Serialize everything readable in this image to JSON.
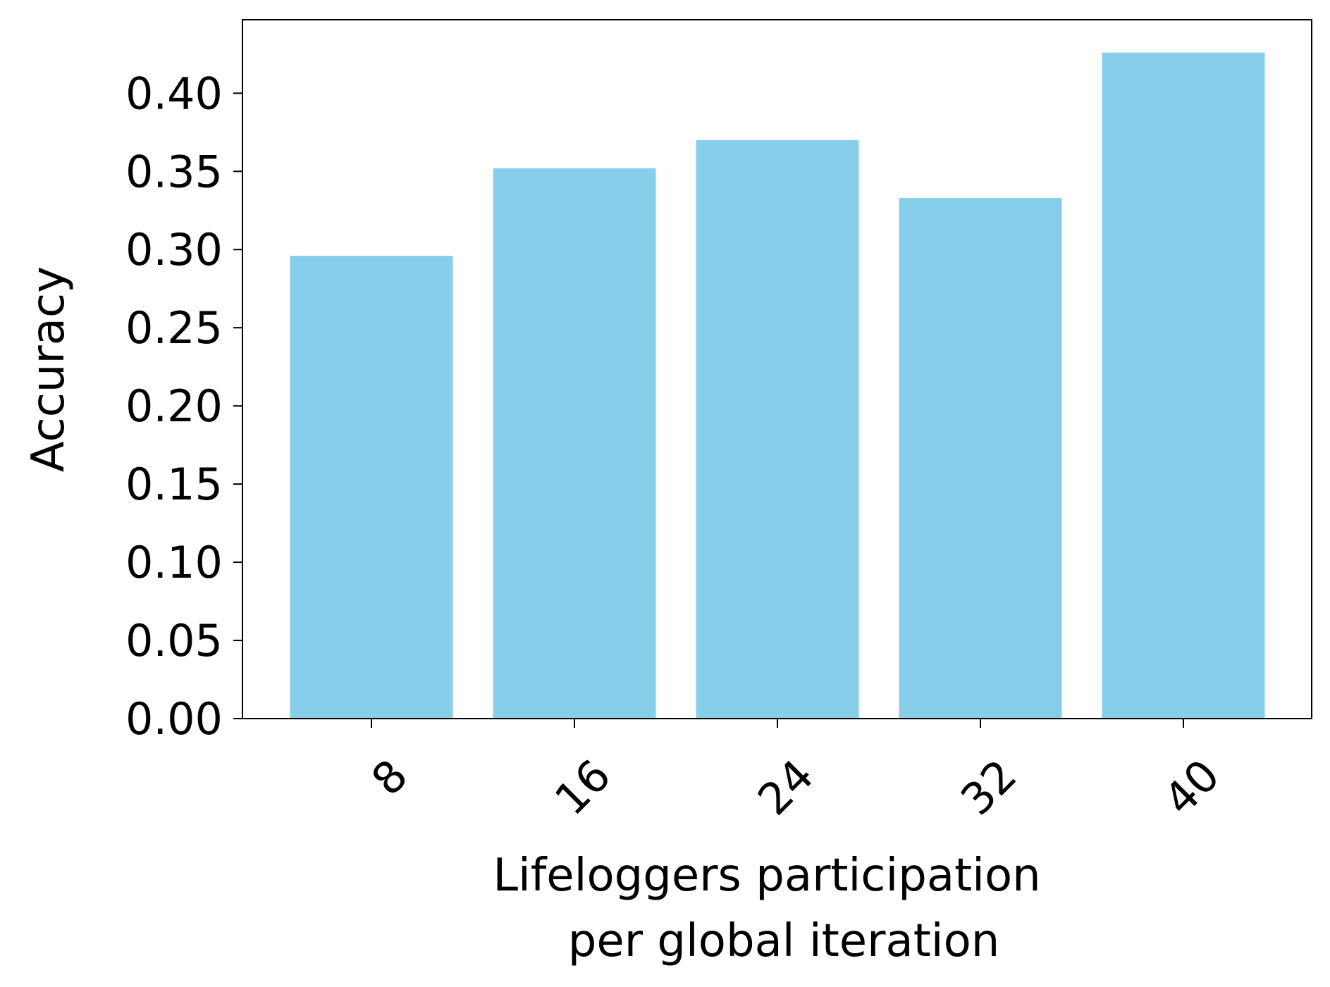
{
  "chart_data": {
    "type": "bar",
    "categories": [
      "8",
      "16",
      "24",
      "32",
      "40"
    ],
    "values": [
      0.296,
      0.352,
      0.37,
      0.333,
      0.426
    ],
    "bar_color": "#87ceeb",
    "xlabel_line1": "Lifeloggers participation",
    "xlabel_line2": "per global iteration",
    "ylabel": "Accuracy",
    "ylim": [
      0,
      0.447
    ],
    "yticks": [
      "0.00",
      "0.05",
      "0.10",
      "0.15",
      "0.20",
      "0.25",
      "0.30",
      "0.35",
      "0.40"
    ],
    "ytick_values": [
      0,
      0.05,
      0.1,
      0.15,
      0.2,
      0.25,
      0.3,
      0.35,
      0.4
    ],
    "x_tick_rotation": "45 degrees",
    "grid": false,
    "legend": "none"
  }
}
